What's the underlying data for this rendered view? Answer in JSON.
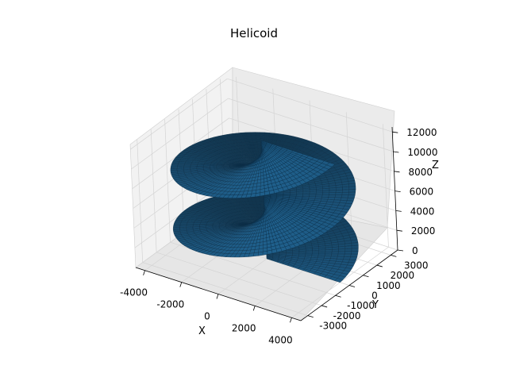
{
  "chart_data": {
    "type": "surface3d",
    "title": "Helicoid",
    "xlabel": "X",
    "ylabel": "Y",
    "zlabel": "Z",
    "surface_color": "#1f5f8b",
    "edge_color": "#0b2d45",
    "xlim": [
      -4500,
      4500
    ],
    "ylim": [
      -3500,
      3500
    ],
    "zlim": [
      0,
      12500
    ],
    "x_ticks": [
      "-4000",
      "-2000",
      "0",
      "2000",
      "4000"
    ],
    "y_ticks": [
      "-3000",
      "-2000",
      "-1000",
      "0",
      "1000",
      "2000",
      "3000"
    ],
    "z_ticks": [
      "0",
      "2000",
      "4000",
      "6000",
      "8000",
      "10000",
      "12000"
    ],
    "surface": {
      "name": "helicoid",
      "radius_max": 4000,
      "radius_min": 0,
      "turns": 2,
      "pitch": 6000,
      "theta_range_deg": [
        0,
        720
      ],
      "z_range": [
        0,
        12000
      ]
    }
  }
}
